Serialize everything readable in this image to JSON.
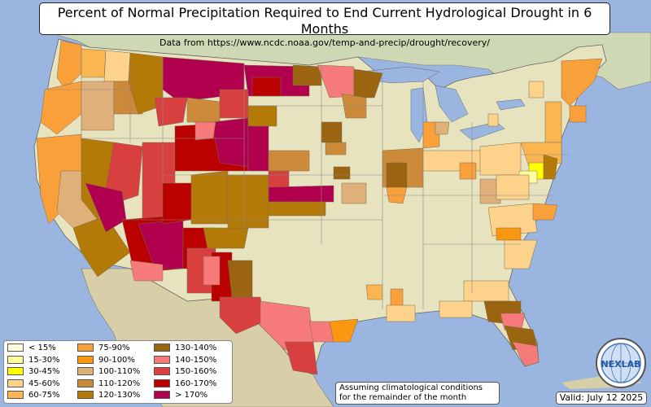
{
  "title": "Percent of Normal Precipitation Required to End Current Hydrological Drought in 6 Months",
  "subtitle": "Data from https://www.ncdc.noaa.gov/temp-and-precip/drought/recovery/",
  "note_line1": "Assuming climatological conditions",
  "note_line2": "for the remainder of the month",
  "valid": "Valid: July 12 2025",
  "logo_text": "NEXLAB",
  "colors": {
    "ocean": "#9ab6e0",
    "land": "#e7e3bf",
    "canada_land": "#cfd8b5",
    "mexico_land": "#d8cfa8"
  },
  "legend": [
    {
      "label": "< 15%",
      "color": "#ffffe0"
    },
    {
      "label": "15-30%",
      "color": "#ffffa0"
    },
    {
      "label": "30-45%",
      "color": "#ffff00"
    },
    {
      "label": "45-60%",
      "color": "#fdd28a"
    },
    {
      "label": "60-75%",
      "color": "#fbb652"
    },
    {
      "label": "75-90%",
      "color": "#faa03a"
    },
    {
      "label": "90-100%",
      "color": "#f99810"
    },
    {
      "label": "100-110%",
      "color": "#e0b07a"
    },
    {
      "label": "110-120%",
      "color": "#cc8a3a"
    },
    {
      "label": "120-130%",
      "color": "#b47a08"
    },
    {
      "label": "130-140%",
      "color": "#9a6410"
    },
    {
      "label": "140-150%",
      "color": "#f77a7a"
    },
    {
      "label": "150-160%",
      "color": "#d84040"
    },
    {
      "label": "160-170%",
      "color": "#bb0000"
    },
    {
      "label": "> 170%",
      "color": "#b0004e"
    }
  ]
}
